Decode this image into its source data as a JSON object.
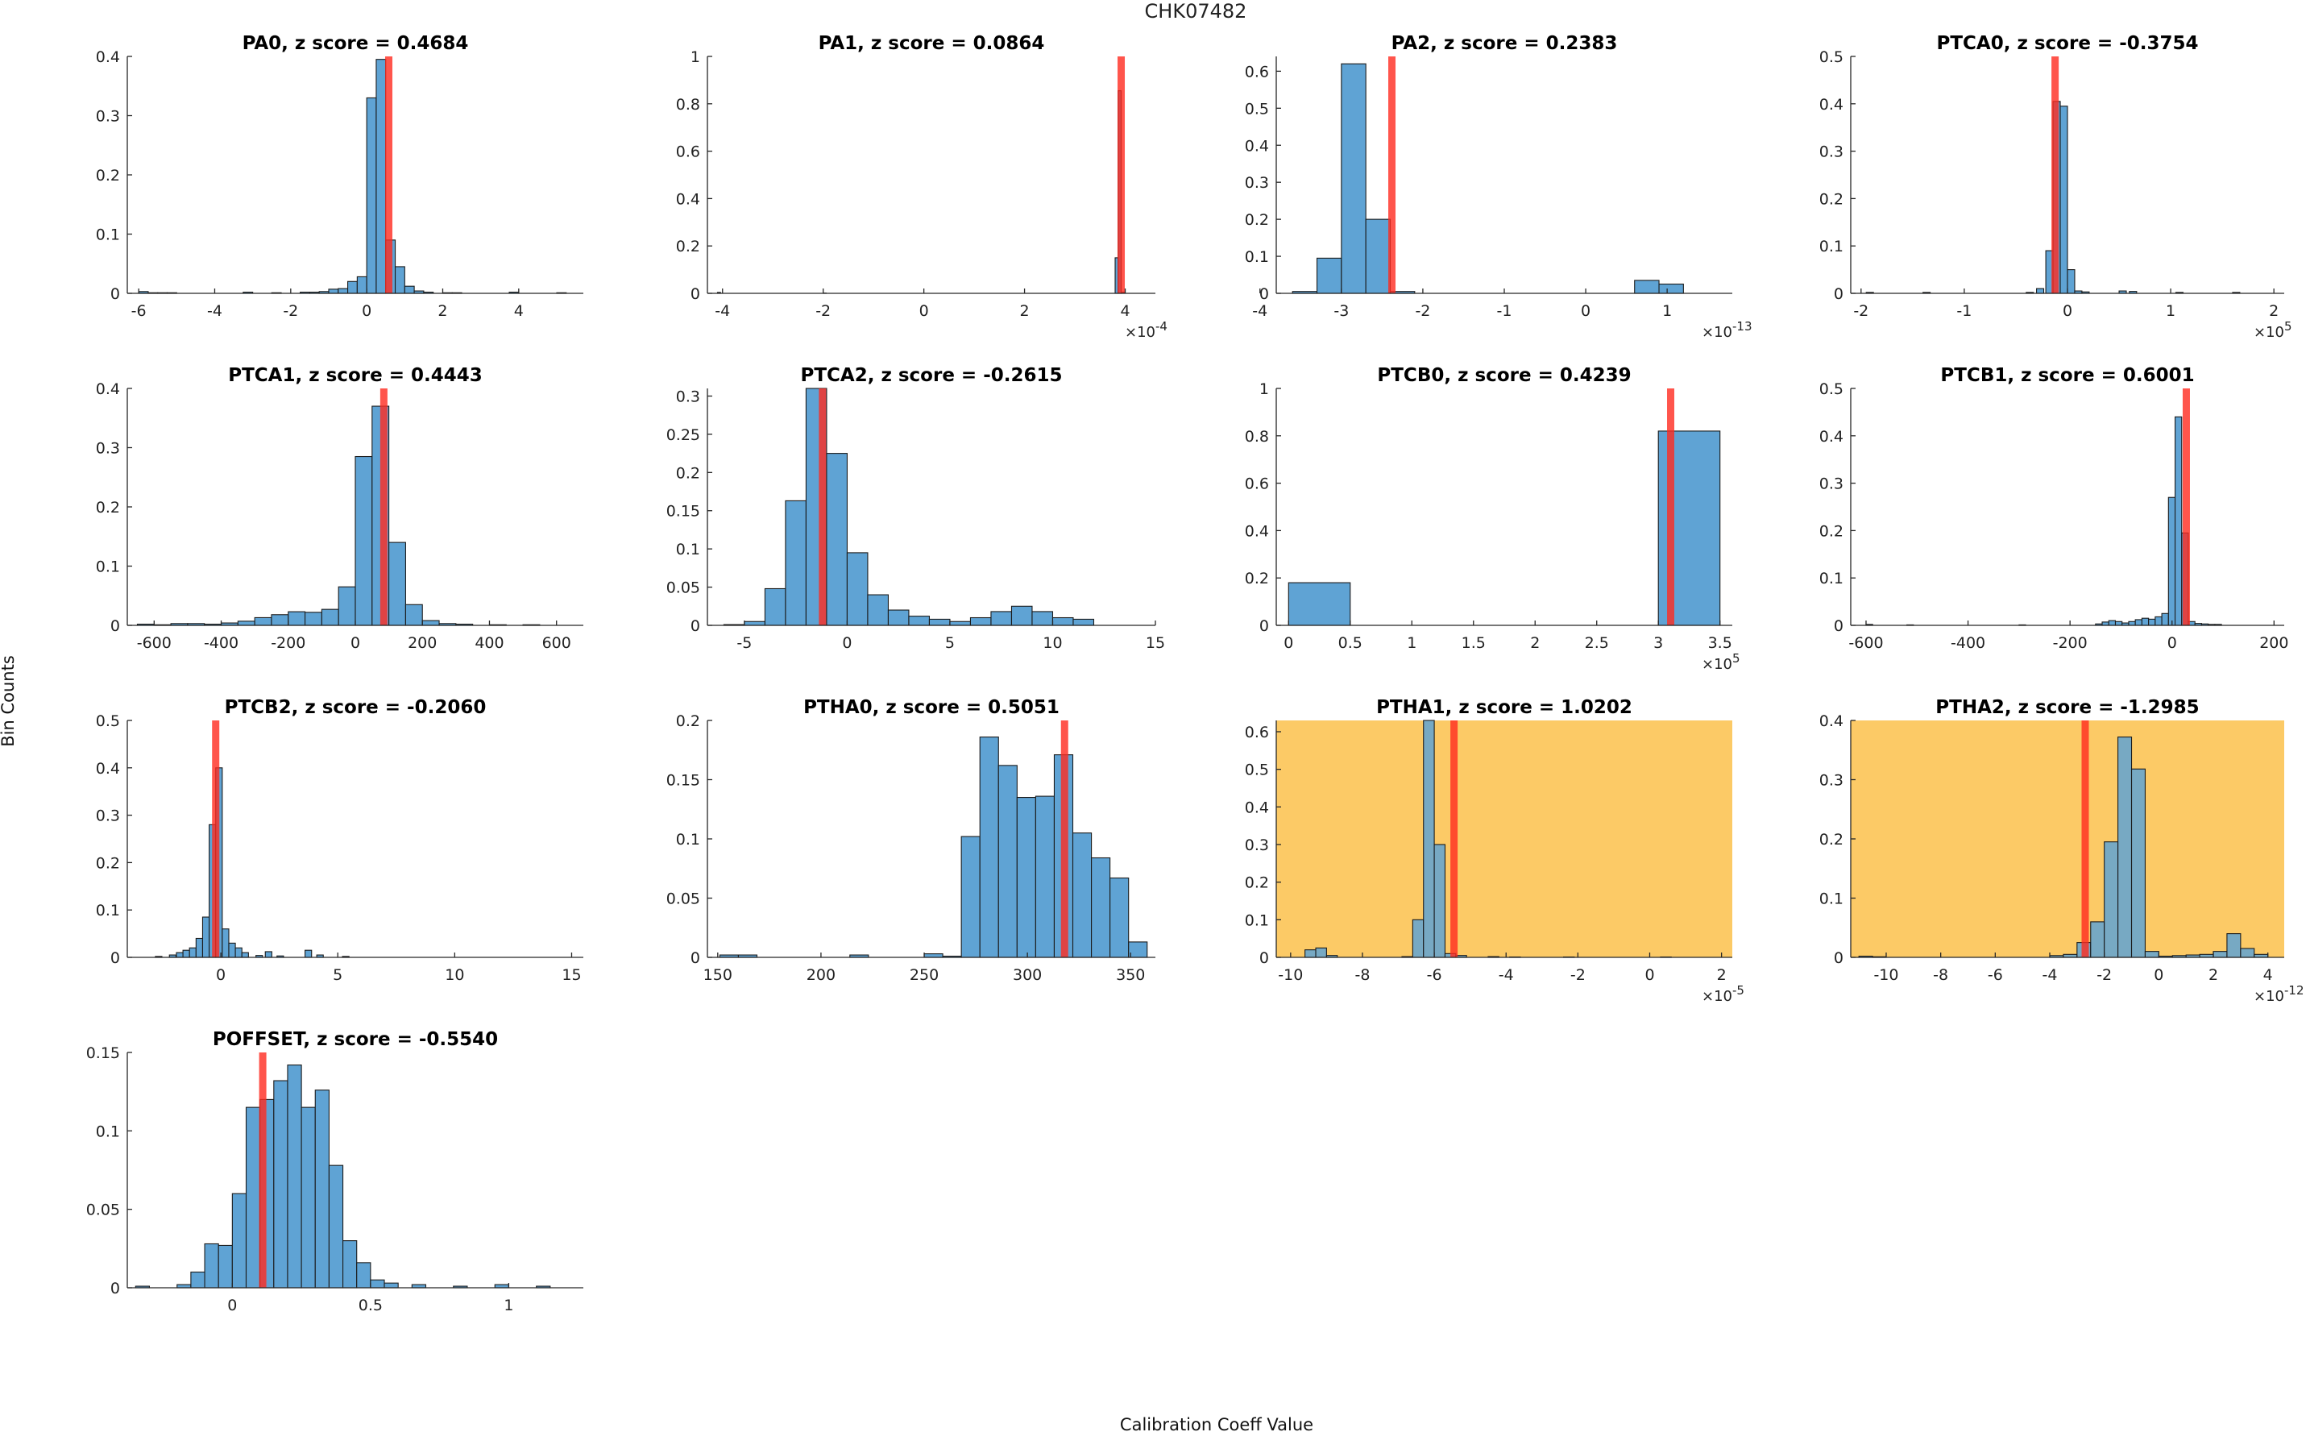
{
  "figure": {
    "suptitle": "CHK07482",
    "xlabel": "Calibration Coeff Value",
    "ylabel": "Bin Counts"
  },
  "colors": {
    "bar": "#5fa3d4",
    "marker": "#ff2a1f",
    "highlight": "#fcca66",
    "axis": "#262626"
  },
  "chart_data": [
    {
      "type": "bar",
      "title": "PA0, z score = 0.4684",
      "highlight": false,
      "xlim": [
        -6.3,
        5.7
      ],
      "ylim": [
        0,
        0.4
      ],
      "xticks": [
        -6,
        -4,
        -2,
        0,
        2,
        4
      ],
      "xticklabels": [
        "-6",
        "-4",
        "-2",
        "0",
        "2",
        "4"
      ],
      "yticks": [
        0,
        0.1,
        0.2,
        0.3,
        0.4
      ],
      "yticklabels": [
        "0",
        "0.1",
        "0.2",
        "0.3",
        "0.4"
      ],
      "bin_width": 0.25,
      "bins": [
        [
          -6,
          0.003
        ],
        [
          -5.75,
          0.001
        ],
        [
          -5.5,
          0.001
        ],
        [
          -5.25,
          0.001
        ],
        [
          -3.25,
          0.002
        ],
        [
          -2.5,
          0.001
        ],
        [
          -1.75,
          0.002
        ],
        [
          -1.5,
          0.002
        ],
        [
          -1.25,
          0.003
        ],
        [
          -1,
          0.007
        ],
        [
          -0.75,
          0.008
        ],
        [
          -0.5,
          0.02
        ],
        [
          -0.25,
          0.028
        ],
        [
          0,
          0.33
        ],
        [
          0.25,
          0.395
        ],
        [
          0.5,
          0.09
        ],
        [
          0.75,
          0.045
        ],
        [
          1,
          0.012
        ],
        [
          1.25,
          0.004
        ],
        [
          1.5,
          0.002
        ],
        [
          2,
          0.001
        ],
        [
          2.25,
          0.001
        ],
        [
          3.75,
          0.002
        ],
        [
          5,
          0.001
        ]
      ],
      "marker": 0.58
    },
    {
      "type": "bar",
      "title": "PA1, z score = 0.0864",
      "highlight": false,
      "xlim": [
        -4.3,
        4.6
      ],
      "ylim": [
        0,
        1
      ],
      "exponent_label": "×10",
      "exponent": "-4",
      "xticks": [
        -4,
        -2,
        0,
        2,
        4
      ],
      "xticklabels": [
        "-4",
        "-2",
        "0",
        "2",
        "4"
      ],
      "yticks": [
        0,
        0.2,
        0.4,
        0.6,
        0.8,
        1
      ],
      "yticklabels": [
        "0",
        "0.2",
        "0.4",
        "0.6",
        "0.8",
        "1"
      ],
      "bin_width": 0.06,
      "bins": [
        [
          -4.1,
          0.004
        ],
        [
          -2,
          0.001
        ],
        [
          3.8,
          0.15
        ],
        [
          3.86,
          0.855
        ],
        [
          3.92,
          0.005
        ]
      ],
      "marker": 3.92
    },
    {
      "type": "bar",
      "title": "PA2, z score = 0.2383",
      "highlight": false,
      "xlim": [
        -3.8,
        1.8
      ],
      "ylim": [
        0,
        0.64
      ],
      "exponent_label": "×10",
      "exponent": "-13",
      "xticks": [
        -4,
        -3,
        -2,
        -1,
        0,
        1
      ],
      "xticklabels": [
        "-4",
        "-3",
        "-2",
        "-1",
        "0",
        "1"
      ],
      "yticks": [
        0,
        0.1,
        0.2,
        0.3,
        0.4,
        0.5,
        0.6
      ],
      "yticklabels": [
        "0",
        "0.1",
        "0.2",
        "0.3",
        "0.4",
        "0.5",
        "0.6"
      ],
      "bin_width": 0.3,
      "bins": [
        [
          -3.6,
          0.005
        ],
        [
          -3.3,
          0.095
        ],
        [
          -3,
          0.62
        ],
        [
          -2.7,
          0.2
        ],
        [
          -2.4,
          0.005
        ],
        [
          0.6,
          0.035
        ],
        [
          0.9,
          0.025
        ]
      ],
      "marker": -2.38
    },
    {
      "type": "bar",
      "title": "PTCA0, z score = -0.3754",
      "highlight": false,
      "xlim": [
        -2.1,
        2.1
      ],
      "ylim": [
        0,
        0.5
      ],
      "exponent_label": "×10",
      "exponent": "5",
      "xticks": [
        -2,
        -1,
        0,
        1,
        2
      ],
      "xticklabels": [
        "-2",
        "-1",
        "0",
        "1",
        "2"
      ],
      "yticks": [
        0,
        0.1,
        0.2,
        0.3,
        0.4,
        0.5
      ],
      "yticklabels": [
        "0",
        "0.1",
        "0.2",
        "0.3",
        "0.4",
        "0.5"
      ],
      "bin_width": 0.07,
      "bins": [
        [
          -1.95,
          0.002
        ],
        [
          -1.4,
          0.002
        ],
        [
          -0.4,
          0.002
        ],
        [
          -0.3,
          0.01
        ],
        [
          -0.21,
          0.09
        ],
        [
          -0.14,
          0.405
        ],
        [
          -0.07,
          0.395
        ],
        [
          0,
          0.05
        ],
        [
          0.07,
          0.005
        ],
        [
          0.14,
          0.003
        ],
        [
          0.5,
          0.005
        ],
        [
          0.6,
          0.004
        ],
        [
          1.05,
          0.002
        ],
        [
          1.6,
          0.002
        ]
      ],
      "marker": -0.12
    },
    {
      "type": "bar",
      "title": "PTCA1, z score = 0.4443",
      "highlight": false,
      "xlim": [
        -680,
        680
      ],
      "ylim": [
        0,
        0.4
      ],
      "xticks": [
        -600,
        -400,
        -200,
        0,
        200,
        400,
        600
      ],
      "xticklabels": [
        "-600",
        "-400",
        "-200",
        "0",
        "200",
        "400",
        "600"
      ],
      "yticks": [
        0,
        0.1,
        0.2,
        0.3,
        0.4
      ],
      "yticklabels": [
        "0",
        "0.1",
        "0.2",
        "0.3",
        "0.4"
      ],
      "bin_width": 50,
      "bins": [
        [
          -650,
          0.002
        ],
        [
          -600,
          0.001
        ],
        [
          -550,
          0.003
        ],
        [
          -500,
          0.003
        ],
        [
          -450,
          0.002
        ],
        [
          -400,
          0.004
        ],
        [
          -350,
          0.007
        ],
        [
          -300,
          0.013
        ],
        [
          -250,
          0.018
        ],
        [
          -200,
          0.023
        ],
        [
          -150,
          0.022
        ],
        [
          -100,
          0.027
        ],
        [
          -50,
          0.065
        ],
        [
          0,
          0.285
        ],
        [
          50,
          0.37
        ],
        [
          100,
          0.14
        ],
        [
          150,
          0.035
        ],
        [
          200,
          0.008
        ],
        [
          250,
          0.003
        ],
        [
          300,
          0.002
        ],
        [
          400,
          0.001
        ],
        [
          500,
          0.001
        ]
      ],
      "marker": 85
    },
    {
      "type": "bar",
      "title": "PTCA2, z score = -0.2615",
      "highlight": false,
      "xlim": [
        -6.8,
        15
      ],
      "ylim": [
        0,
        0.31
      ],
      "xticks": [
        -5,
        0,
        5,
        10,
        15
      ],
      "xticklabels": [
        "-5",
        "0",
        "5",
        "10",
        "15"
      ],
      "yticks": [
        0,
        0.05,
        0.1,
        0.15,
        0.2,
        0.25,
        0.3
      ],
      "yticklabels": [
        "0",
        "0.05",
        "0.1",
        "0.15",
        "0.2",
        "0.25",
        "0.3"
      ],
      "bin_width": 1,
      "bins": [
        [
          -6,
          0.001
        ],
        [
          -5,
          0.005
        ],
        [
          -4,
          0.048
        ],
        [
          -3,
          0.163
        ],
        [
          -2,
          0.315
        ],
        [
          -1,
          0.225
        ],
        [
          0,
          0.095
        ],
        [
          1,
          0.04
        ],
        [
          2,
          0.02
        ],
        [
          3,
          0.012
        ],
        [
          4,
          0.008
        ],
        [
          5,
          0.005
        ],
        [
          6,
          0.01
        ],
        [
          7,
          0.018
        ],
        [
          8,
          0.025
        ],
        [
          9,
          0.018
        ],
        [
          10,
          0.01
        ],
        [
          11,
          0.008
        ]
      ],
      "marker": -1.2
    },
    {
      "type": "bar",
      "title": "PTCB0, z score = 0.4239",
      "highlight": false,
      "xlim": [
        -0.1,
        3.6
      ],
      "ylim": [
        0,
        1
      ],
      "exponent_label": "×10",
      "exponent": "5",
      "xticks": [
        0,
        0.5,
        1,
        1.5,
        2,
        2.5,
        3,
        3.5
      ],
      "xticklabels": [
        "0",
        "0.5",
        "1",
        "1.5",
        "2",
        "2.5",
        "3",
        "3.5"
      ],
      "yticks": [
        0,
        0.2,
        0.4,
        0.6,
        0.8,
        1
      ],
      "yticklabels": [
        "0",
        "0.2",
        "0.4",
        "0.6",
        "0.8",
        "1"
      ],
      "bin_width": 0.5,
      "bins": [
        [
          0,
          0.18
        ],
        [
          3,
          0.82
        ]
      ],
      "marker": 3.1
    },
    {
      "type": "bar",
      "title": "PTCB1, z score = 0.6001",
      "highlight": false,
      "xlim": [
        -630,
        220
      ],
      "ylim": [
        0,
        0.5
      ],
      "xticks": [
        -600,
        -400,
        -200,
        0,
        200
      ],
      "xticklabels": [
        "-600",
        "-400",
        "-200",
        "0",
        "200"
      ],
      "yticks": [
        0,
        0.1,
        0.2,
        0.3,
        0.4,
        0.5
      ],
      "yticklabels": [
        "0",
        "0.1",
        "0.2",
        "0.3",
        "0.4",
        "0.5"
      ],
      "bin_width": 13,
      "bins": [
        [
          -600,
          0.002
        ],
        [
          -520,
          0.001
        ],
        [
          -300,
          0.001
        ],
        [
          -150,
          0.003
        ],
        [
          -137,
          0.007
        ],
        [
          -124,
          0.01
        ],
        [
          -111,
          0.008
        ],
        [
          -98,
          0.005
        ],
        [
          -85,
          0.008
        ],
        [
          -72,
          0.012
        ],
        [
          -59,
          0.015
        ],
        [
          -46,
          0.013
        ],
        [
          -33,
          0.018
        ],
        [
          -20,
          0.025
        ],
        [
          -7,
          0.27
        ],
        [
          6,
          0.44
        ],
        [
          19,
          0.195
        ],
        [
          32,
          0.008
        ],
        [
          45,
          0.004
        ],
        [
          58,
          0.003
        ],
        [
          71,
          0.002
        ],
        [
          84,
          0.002
        ]
      ],
      "marker": 28
    },
    {
      "type": "bar",
      "title": "PTCB2, z score = -0.2060",
      "highlight": false,
      "xlim": [
        -4,
        15.5
      ],
      "ylim": [
        0,
        0.5
      ],
      "xticks": [
        0,
        5,
        10,
        15
      ],
      "xticklabels": [
        "0",
        "5",
        "10",
        "15"
      ],
      "yticks": [
        0,
        0.1,
        0.2,
        0.3,
        0.4,
        0.5
      ],
      "yticklabels": [
        "0",
        "0.1",
        "0.2",
        "0.3",
        "0.4",
        "0.5"
      ],
      "bin_width": 0.28,
      "bins": [
        [
          -2.8,
          0.002
        ],
        [
          -2.2,
          0.005
        ],
        [
          -1.9,
          0.01
        ],
        [
          -1.62,
          0.015
        ],
        [
          -1.34,
          0.02
        ],
        [
          -1.06,
          0.04
        ],
        [
          -0.78,
          0.085
        ],
        [
          -0.5,
          0.28
        ],
        [
          -0.22,
          0.4
        ],
        [
          0.06,
          0.06
        ],
        [
          0.34,
          0.03
        ],
        [
          0.62,
          0.02
        ],
        [
          0.9,
          0.01
        ],
        [
          1.5,
          0.004
        ],
        [
          1.9,
          0.012
        ],
        [
          2.4,
          0.003
        ],
        [
          3.6,
          0.015
        ],
        [
          4.1,
          0.005
        ],
        [
          5.2,
          0.002
        ]
      ],
      "marker": -0.22
    },
    {
      "type": "bar",
      "title": "PTHA0, z score = 0.5051",
      "highlight": false,
      "xlim": [
        145,
        362
      ],
      "ylim": [
        0,
        0.2
      ],
      "xticks": [
        150,
        200,
        250,
        300,
        350
      ],
      "xticklabels": [
        "150",
        "200",
        "250",
        "300",
        "350"
      ],
      "yticks": [
        0,
        0.05,
        0.1,
        0.15,
        0.2
      ],
      "yticklabels": [
        "0",
        "0.05",
        "0.1",
        "0.15",
        "0.2"
      ],
      "bin_width": 9,
      "bins": [
        [
          151,
          0.002
        ],
        [
          160,
          0.002
        ],
        [
          214,
          0.002
        ],
        [
          250,
          0.003
        ],
        [
          259,
          0.001
        ],
        [
          268,
          0.102
        ],
        [
          277,
          0.186
        ],
        [
          286,
          0.162
        ],
        [
          295,
          0.135
        ],
        [
          304,
          0.136
        ],
        [
          313,
          0.171
        ],
        [
          322,
          0.105
        ],
        [
          331,
          0.084
        ],
        [
          340,
          0.067
        ],
        [
          349,
          0.013
        ]
      ],
      "marker": 318
    },
    {
      "type": "bar",
      "title": "PTHA1, z score = 1.0202",
      "highlight": true,
      "xlim": [
        -10.4,
        2.3
      ],
      "ylim": [
        0,
        0.63
      ],
      "exponent_label": "×10",
      "exponent": "-5",
      "xticks": [
        -10,
        -8,
        -6,
        -4,
        -2,
        0,
        2
      ],
      "xticklabels": [
        "-10",
        "-8",
        "-6",
        "-4",
        "-2",
        "0",
        "2"
      ],
      "yticks": [
        0,
        0.1,
        0.2,
        0.3,
        0.4,
        0.5,
        0.6
      ],
      "yticklabels": [
        "0",
        "0.1",
        "0.2",
        "0.3",
        "0.4",
        "0.5",
        "0.6"
      ],
      "bin_width": 0.3,
      "bins": [
        [
          -9.6,
          0.02
        ],
        [
          -9.3,
          0.025
        ],
        [
          -9.0,
          0.005
        ],
        [
          -6.9,
          0.002
        ],
        [
          -6.6,
          0.1
        ],
        [
          -6.3,
          0.635
        ],
        [
          -6.0,
          0.3
        ],
        [
          -5.7,
          0.01
        ],
        [
          -5.4,
          0.005
        ],
        [
          -4.5,
          0.002
        ],
        [
          -3.9,
          0.001
        ],
        [
          -2.4,
          0.001
        ],
        [
          0.3,
          0.001
        ]
      ],
      "marker": -5.45
    },
    {
      "type": "bar",
      "title": "PTHA2, z score = -1.2985",
      "highlight": true,
      "xlim": [
        -11.3,
        4.6
      ],
      "ylim": [
        0,
        0.4
      ],
      "exponent_label": "×10",
      "exponent": "-12",
      "xticks": [
        -10,
        -8,
        -6,
        -4,
        -2,
        0,
        2,
        4
      ],
      "xticklabels": [
        "-10",
        "-8",
        "-6",
        "-4",
        "-2",
        "0",
        "2",
        "4"
      ],
      "yticks": [
        0,
        0.1,
        0.2,
        0.3,
        0.4
      ],
      "yticklabels": [
        "0",
        "0.1",
        "0.2",
        "0.3",
        "0.4"
      ],
      "bin_width": 0.5,
      "bins": [
        [
          -11,
          0.002
        ],
        [
          -10.5,
          0.001
        ],
        [
          -4,
          0.003
        ],
        [
          -3.5,
          0.005
        ],
        [
          -3,
          0.025
        ],
        [
          -2.5,
          0.06
        ],
        [
          -2,
          0.195
        ],
        [
          -1.5,
          0.372
        ],
        [
          -1,
          0.318
        ],
        [
          -0.5,
          0.01
        ],
        [
          0,
          0.002
        ],
        [
          0.5,
          0.003
        ],
        [
          1,
          0.004
        ],
        [
          1.5,
          0.005
        ],
        [
          2,
          0.01
        ],
        [
          2.5,
          0.04
        ],
        [
          3,
          0.015
        ],
        [
          3.5,
          0.005
        ]
      ],
      "marker": -2.7
    },
    {
      "type": "bar",
      "title": "POFFSET, z score = -0.5540",
      "highlight": false,
      "xlim": [
        -0.38,
        1.27
      ],
      "ylim": [
        0,
        0.15
      ],
      "xticks": [
        0,
        0.5,
        1
      ],
      "xticklabels": [
        "0",
        "0.5",
        "1"
      ],
      "yticks": [
        0,
        0.05,
        0.1,
        0.15
      ],
      "yticklabels": [
        "0",
        "0.05",
        "0.1",
        "0.15"
      ],
      "bin_width": 0.05,
      "bins": [
        [
          -0.35,
          0.001
        ],
        [
          -0.2,
          0.002
        ],
        [
          -0.15,
          0.01
        ],
        [
          -0.1,
          0.028
        ],
        [
          -0.05,
          0.027
        ],
        [
          0,
          0.06
        ],
        [
          0.05,
          0.115
        ],
        [
          0.1,
          0.12
        ],
        [
          0.15,
          0.132
        ],
        [
          0.2,
          0.142
        ],
        [
          0.25,
          0.115
        ],
        [
          0.3,
          0.126
        ],
        [
          0.35,
          0.078
        ],
        [
          0.4,
          0.03
        ],
        [
          0.45,
          0.016
        ],
        [
          0.5,
          0.005
        ],
        [
          0.55,
          0.003
        ],
        [
          0.65,
          0.002
        ],
        [
          0.8,
          0.001
        ],
        [
          0.95,
          0.002
        ],
        [
          1.1,
          0.001
        ]
      ],
      "marker": 0.11
    }
  ]
}
